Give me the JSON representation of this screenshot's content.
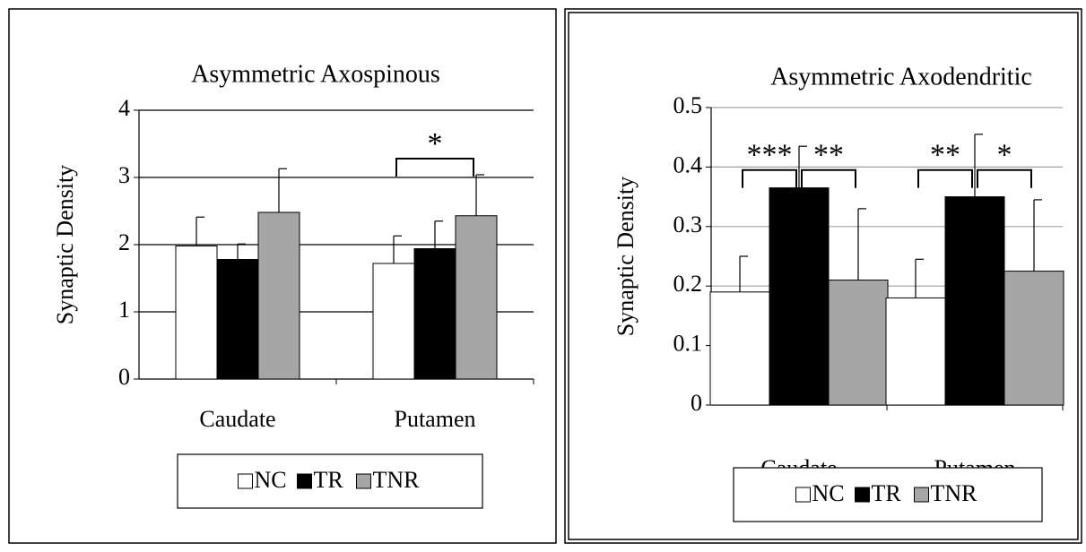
{
  "chart_data": [
    {
      "type": "bar",
      "title": "Asymmetric Axospinous",
      "y_label": "Synaptic Density",
      "categories": [
        "Caudate",
        "Putamen"
      ],
      "series": [
        {
          "name": "NC",
          "color": "#ffffff",
          "values": [
            1.98,
            1.72
          ],
          "errors": [
            0.43,
            0.41
          ]
        },
        {
          "name": "TR",
          "color": "#000000",
          "values": [
            1.78,
            1.94
          ],
          "errors": [
            0.23,
            0.41
          ]
        },
        {
          "name": "TNR",
          "color": "#a6a6a6",
          "values": [
            2.48,
            2.43
          ],
          "errors": [
            0.65,
            0.61
          ]
        }
      ],
      "ylim": [
        0,
        4
      ],
      "yticks": [
        0,
        1,
        2,
        3,
        4
      ],
      "grid": true,
      "grid_color": "#000000",
      "legend": "bottom",
      "annotations": [
        {
          "text": "*",
          "category": 1,
          "from": 0,
          "to": 2
        }
      ]
    },
    {
      "type": "bar",
      "title": "Asymmetric Axodendritic",
      "y_label": "Synaptic Density",
      "categories": [
        "Caudate",
        "Putamen"
      ],
      "series": [
        {
          "name": "NC",
          "color": "#ffffff",
          "values": [
            0.19,
            0.18
          ],
          "errors": [
            0.06,
            0.065
          ]
        },
        {
          "name": "TR",
          "color": "#000000",
          "values": [
            0.365,
            0.35
          ],
          "errors": [
            0.07,
            0.105
          ]
        },
        {
          "name": "TNR",
          "color": "#a6a6a6",
          "values": [
            0.21,
            0.225
          ],
          "errors": [
            0.12,
            0.12
          ]
        }
      ],
      "ylim": [
        0,
        0.5
      ],
      "yticks": [
        0,
        0.1,
        0.2,
        0.3,
        0.4,
        0.5
      ],
      "grid": true,
      "grid_color": "#a0a0a0",
      "legend": "bottom",
      "annotations": [
        {
          "text": "***",
          "category": 0,
          "from": 0,
          "to": 1
        },
        {
          "text": "**",
          "category": 0,
          "from": 1,
          "to": 2
        },
        {
          "text": "**",
          "category": 1,
          "from": 0,
          "to": 1
        },
        {
          "text": "*",
          "category": 1,
          "from": 1,
          "to": 2
        }
      ]
    }
  ]
}
